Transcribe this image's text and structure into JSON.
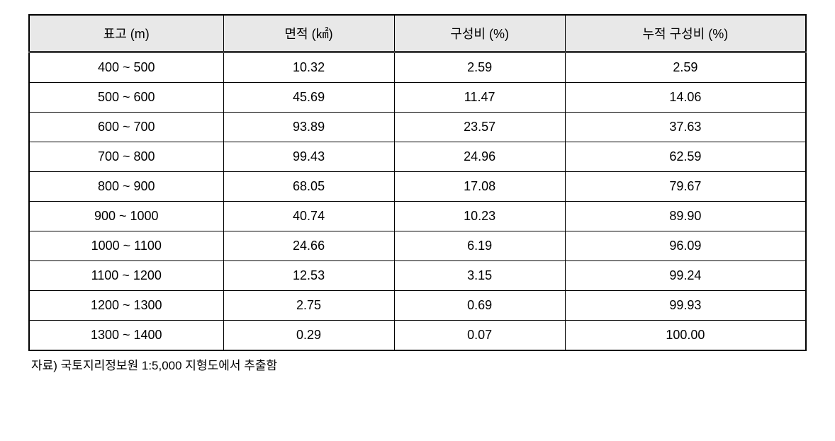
{
  "table": {
    "header_bg": "#e8e8e8",
    "border_color": "#000000",
    "font_size": 18,
    "columns": [
      {
        "label": "표고 (m)",
        "width": "25%"
      },
      {
        "label": "면적 (㎢)",
        "width": "22%"
      },
      {
        "label": "구성비 (%)",
        "width": "22%"
      },
      {
        "label": "누적 구성비 (%)",
        "width": "31%"
      }
    ],
    "rows": [
      {
        "elevation": "400 ~ 500",
        "area": "10.32",
        "ratio": "2.59",
        "cumulative": "2.59"
      },
      {
        "elevation": "500 ~ 600",
        "area": "45.69",
        "ratio": "11.47",
        "cumulative": "14.06"
      },
      {
        "elevation": "600 ~ 700",
        "area": "93.89",
        "ratio": "23.57",
        "cumulative": "37.63"
      },
      {
        "elevation": "700 ~ 800",
        "area": "99.43",
        "ratio": "24.96",
        "cumulative": "62.59"
      },
      {
        "elevation": "800 ~ 900",
        "area": "68.05",
        "ratio": "17.08",
        "cumulative": "79.67"
      },
      {
        "elevation": "900 ~ 1000",
        "area": "40.74",
        "ratio": "10.23",
        "cumulative": "89.90"
      },
      {
        "elevation": "1000 ~ 1100",
        "area": "24.66",
        "ratio": "6.19",
        "cumulative": "96.09"
      },
      {
        "elevation": "1100 ~ 1200",
        "area": "12.53",
        "ratio": "3.15",
        "cumulative": "99.24"
      },
      {
        "elevation": "1200 ~ 1300",
        "area": "2.75",
        "ratio": "0.69",
        "cumulative": "99.93"
      },
      {
        "elevation": "1300 ~ 1400",
        "area": "0.29",
        "ratio": "0.07",
        "cumulative": "100.00"
      }
    ]
  },
  "footnote": "자료) 국토지리정보원 1:5,000 지형도에서 추출함"
}
